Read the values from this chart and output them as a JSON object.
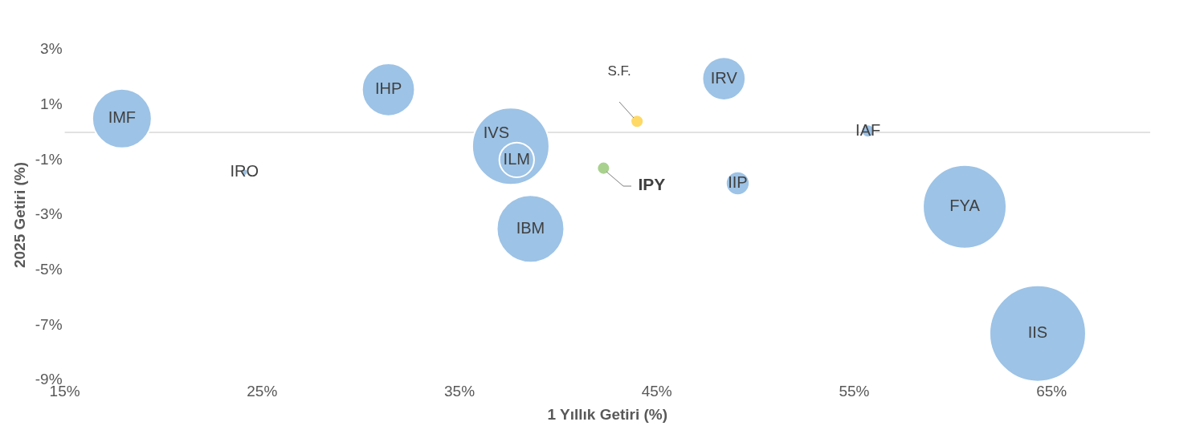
{
  "chart_data": {
    "type": "bubble",
    "xlabel": "1 Yıllık Getiri (%)",
    "ylabel": "2025 Getiri (%)",
    "xlim": [
      15,
      70
    ],
    "xticks": [
      {
        "value": 15,
        "label": "15%"
      },
      {
        "value": 25,
        "label": "25%"
      },
      {
        "value": 35,
        "label": "35%"
      },
      {
        "value": 45,
        "label": "45%"
      },
      {
        "value": 55,
        "label": "55%"
      },
      {
        "value": 65,
        "label": "65%"
      }
    ],
    "ylim": [
      -9,
      3
    ],
    "ref_lines": [
      {
        "axis": "y",
        "value": 0,
        "color": "#d9d9d9"
      }
    ],
    "yticks": [
      {
        "value": 3,
        "label": "3%"
      },
      {
        "value": 1,
        "label": "1%"
      },
      {
        "value": -1,
        "label": "-1%"
      },
      {
        "value": -3,
        "label": "-3%"
      },
      {
        "value": -5,
        "label": "-5%"
      },
      {
        "value": -7,
        "label": "-7%"
      },
      {
        "value": -9,
        "label": "-9%"
      }
    ],
    "grid": false,
    "legend": false,
    "series": [
      {
        "name": "IMF",
        "color": "#9dc3e6",
        "x": [
          17.9
        ],
        "values": [
          0.5
        ],
        "sizes": [
          0.38
        ]
      },
      {
        "name": "IRO",
        "color": "#9dc3e6",
        "x": [
          24.1
        ],
        "values": [
          -1.45
        ],
        "sizes": [
          0.005
        ]
      },
      {
        "name": "IHP",
        "color": "#9dc3e6",
        "x": [
          31.4
        ],
        "values": [
          1.55
        ],
        "sizes": [
          0.3
        ]
      },
      {
        "name": "IVS",
        "color": "#9dc3e6",
        "x": [
          37.6
        ],
        "values": [
          -0.5
        ],
        "sizes": [
          0.64
        ]
      },
      {
        "name": "ILM",
        "color": "#9dc3e6",
        "x": [
          37.9
        ],
        "values": [
          -1.0
        ],
        "sizes": [
          0.13
        ]
      },
      {
        "name": "IBM",
        "color": "#9dc3e6",
        "x": [
          38.6
        ],
        "values": [
          -3.5
        ],
        "sizes": [
          0.49
        ]
      },
      {
        "name": "S.F.",
        "color": "#ffd966",
        "x": [
          44.0
        ],
        "values": [
          0.4
        ],
        "sizes": [
          0.018
        ]
      },
      {
        "name": "IPY",
        "color": "#a9d18e",
        "x": [
          42.3
        ],
        "values": [
          -1.3
        ],
        "sizes": [
          0.018
        ]
      },
      {
        "name": "IRV",
        "color": "#9dc3e6",
        "x": [
          48.4
        ],
        "values": [
          1.95
        ],
        "sizes": [
          0.2
        ]
      },
      {
        "name": "IIP",
        "color": "#9dc3e6",
        "x": [
          49.1
        ],
        "values": [
          -1.85
        ],
        "sizes": [
          0.06
        ]
      },
      {
        "name": "IAF",
        "color": "#9dc3e6",
        "x": [
          55.7
        ],
        "values": [
          0.05
        ],
        "sizes": [
          0.018
        ]
      },
      {
        "name": "FYA",
        "color": "#9dc3e6",
        "x": [
          60.6
        ],
        "values": [
          -2.7
        ],
        "sizes": [
          0.75
        ]
      },
      {
        "name": "IIS",
        "color": "#9dc3e6",
        "x": [
          64.3
        ],
        "values": [
          -7.3
        ],
        "sizes": [
          1
        ]
      }
    ]
  }
}
